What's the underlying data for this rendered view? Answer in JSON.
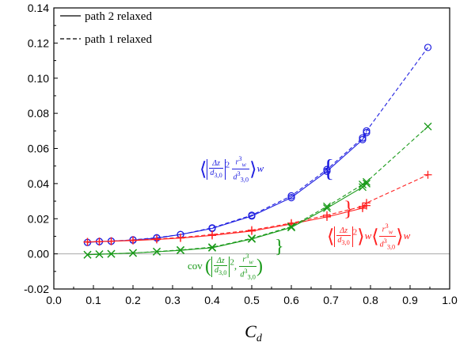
{
  "chart_data": {
    "type": "line",
    "xlabel": "C_d",
    "xlim": [
      0.0,
      1.0
    ],
    "ylim": [
      -0.02,
      0.14
    ],
    "xticks": [
      "0.0",
      "0.1",
      "0.2",
      "0.3",
      "0.4",
      "0.5",
      "0.6",
      "0.7",
      "0.8",
      "0.9",
      "1.0"
    ],
    "yticks": [
      "-0.02",
      "0.00",
      "0.02",
      "0.04",
      "0.06",
      "0.08",
      "0.10",
      "0.12",
      "0.14"
    ],
    "legend": {
      "position": "top-left",
      "entries": [
        {
          "label": "path 2 relaxed",
          "style": "solid"
        },
        {
          "label": "path 1 relaxed",
          "style": "dashed"
        }
      ]
    },
    "series": [
      {
        "group": "blue",
        "marker": "circle",
        "color": "#1f1fe0",
        "style": "solid",
        "x": [
          0.085,
          0.115,
          0.145,
          0.2,
          0.26,
          0.32,
          0.4,
          0.5,
          0.6,
          0.69,
          0.78,
          0.79
        ],
        "y": [
          0.0065,
          0.007,
          0.0072,
          0.0078,
          0.009,
          0.011,
          0.0145,
          0.0215,
          0.032,
          0.047,
          0.065,
          0.069
        ]
      },
      {
        "group": "blue",
        "marker": "circle",
        "color": "#1f1fe0",
        "style": "dashed",
        "x": [
          0.085,
          0.115,
          0.145,
          0.2,
          0.26,
          0.32,
          0.4,
          0.5,
          0.6,
          0.69,
          0.78,
          0.79,
          0.945
        ],
        "y": [
          0.0065,
          0.007,
          0.0072,
          0.008,
          0.0092,
          0.011,
          0.0148,
          0.022,
          0.033,
          0.048,
          0.066,
          0.07,
          0.1175
        ]
      },
      {
        "group": "red",
        "marker": "plus",
        "color": "#ff2020",
        "style": "solid",
        "x": [
          0.085,
          0.115,
          0.145,
          0.2,
          0.26,
          0.32,
          0.4,
          0.5,
          0.6,
          0.69,
          0.78,
          0.79
        ],
        "y": [
          0.0068,
          0.007,
          0.0072,
          0.0076,
          0.0082,
          0.009,
          0.0105,
          0.013,
          0.017,
          0.021,
          0.026,
          0.0275
        ]
      },
      {
        "group": "red",
        "marker": "plus",
        "color": "#ff2020",
        "style": "dashed",
        "x": [
          0.085,
          0.115,
          0.145,
          0.2,
          0.26,
          0.32,
          0.4,
          0.5,
          0.6,
          0.69,
          0.78,
          0.79,
          0.945
        ],
        "y": [
          0.0068,
          0.007,
          0.0072,
          0.0078,
          0.0085,
          0.0093,
          0.011,
          0.0135,
          0.0175,
          0.022,
          0.027,
          0.029,
          0.045
        ]
      },
      {
        "group": "green",
        "marker": "x",
        "color": "#1a9a1a",
        "style": "solid",
        "x": [
          0.085,
          0.115,
          0.145,
          0.2,
          0.26,
          0.32,
          0.4,
          0.5,
          0.6,
          0.69,
          0.78,
          0.79
        ],
        "y": [
          -0.0005,
          -0.0002,
          0.0,
          0.0005,
          0.0012,
          0.002,
          0.0035,
          0.0085,
          0.015,
          0.026,
          0.038,
          0.04
        ]
      },
      {
        "group": "green",
        "marker": "x",
        "color": "#1a9a1a",
        "style": "dashed",
        "x": [
          0.085,
          0.115,
          0.145,
          0.2,
          0.26,
          0.32,
          0.4,
          0.5,
          0.6,
          0.69,
          0.78,
          0.79,
          0.945
        ],
        "y": [
          -0.0005,
          -0.0002,
          0.0,
          0.0005,
          0.0013,
          0.0022,
          0.0038,
          0.0088,
          0.0155,
          0.027,
          0.0395,
          0.041,
          0.0725
        ]
      }
    ],
    "annotations": [
      {
        "group": "blue",
        "color": "#1f1fe0",
        "text": "⟨|Δz/d3,0|² rw³/d3,0³⟩w"
      },
      {
        "group": "red",
        "color": "#ff2020",
        "text": "⟨|Δz/d3,0|²⟩w ⟨rw³/d3,0³⟩w"
      },
      {
        "group": "green",
        "color": "#1a9a1a",
        "text": "cov(|Δz/d3,0|², rw³/d3,0³)"
      }
    ]
  }
}
